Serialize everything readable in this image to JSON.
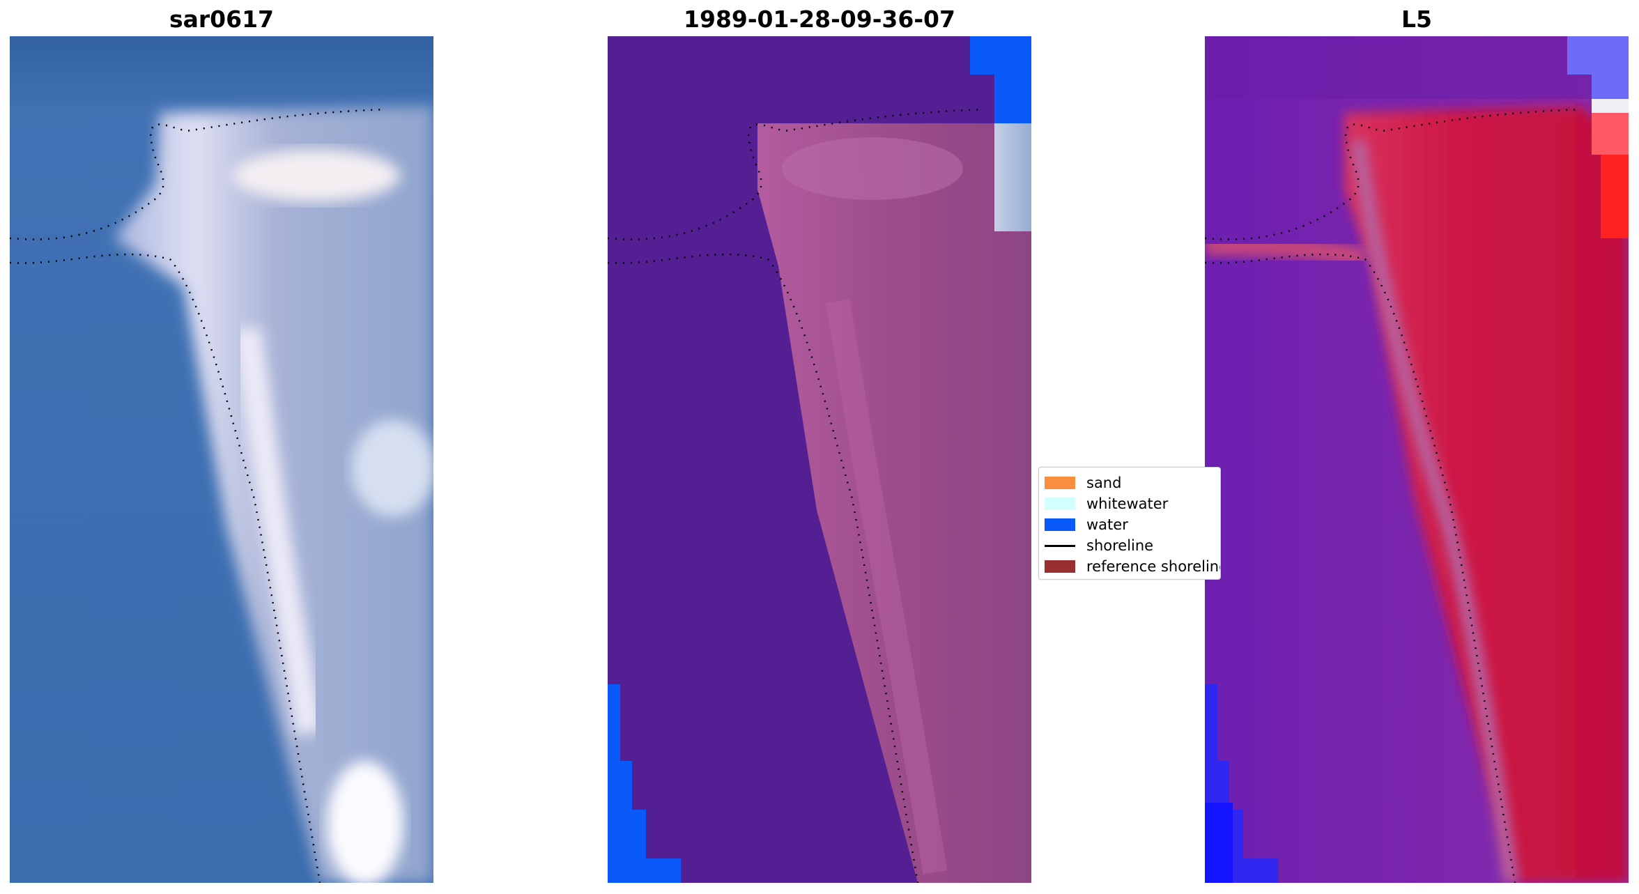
{
  "panels": [
    {
      "title": "sar0617"
    },
    {
      "title": "1989-01-28-09-36-07"
    },
    {
      "title": "L5"
    }
  ],
  "legend": {
    "items": [
      {
        "label": "sand",
        "color": "#f98f3e",
        "kind": "patch"
      },
      {
        "label": "whitewater",
        "color": "#d2fffd",
        "kind": "patch"
      },
      {
        "label": "water",
        "color": "#0a5af9",
        "kind": "patch"
      },
      {
        "label": "shoreline",
        "color": "#000000",
        "kind": "line"
      },
      {
        "label": "reference shoreline",
        "color": "#98302f",
        "kind": "patch"
      }
    ]
  },
  "colors": {
    "rgb_water": "#3c6fb4",
    "rgb_sand": "#dcd9ee",
    "classified_background": "#531f92",
    "classified_land": "#b45a9a",
    "classified_water": "#0a5af9",
    "index_water": "#7a1fa8",
    "index_land": "#c8113f",
    "index_extreme_blue": "#1414ff",
    "index_extreme_red": "#ff2222"
  }
}
